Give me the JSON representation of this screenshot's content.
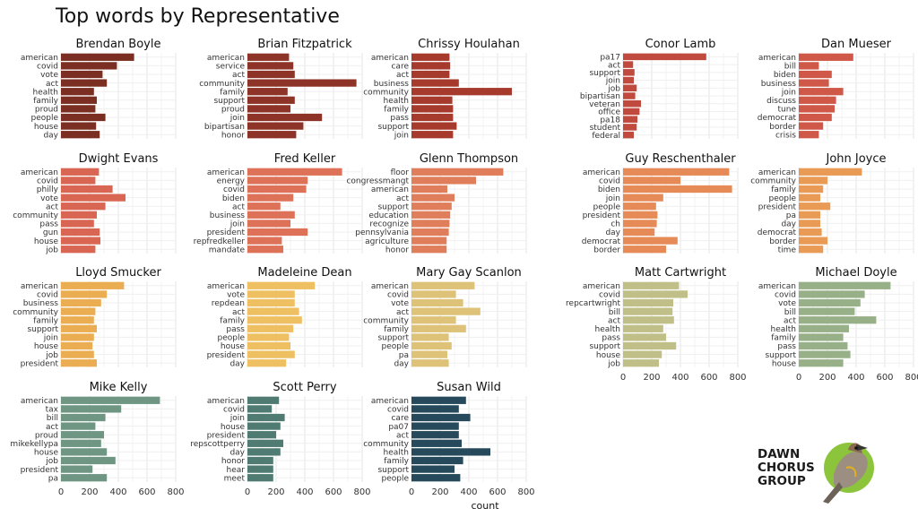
{
  "logo": {
    "lines": [
      "DAWN",
      "CHORUS",
      "GROUP"
    ]
  },
  "chart_data": {
    "type": "bar",
    "orientation": "horizontal",
    "title": "Top words by Representative",
    "xlabel": "count",
    "ylabel": "",
    "xlim": [
      0,
      800
    ],
    "xticks": [
      0,
      200,
      400,
      600,
      800
    ],
    "grid": true,
    "panels": [
      {
        "name": "Brendan Boyle",
        "color": "#7a2f22",
        "words": [
          "american",
          "covid",
          "vote",
          "act",
          "health",
          "family",
          "proud",
          "people",
          "house",
          "day"
        ],
        "values": [
          510,
          390,
          290,
          320,
          230,
          250,
          240,
          310,
          245,
          270
        ]
      },
      {
        "name": "Brian Fitzpatrick",
        "color": "#8e3327",
        "words": [
          "american",
          "service",
          "act",
          "community",
          "family",
          "support",
          "proud",
          "join",
          "bipartisan",
          "honor"
        ],
        "values": [
          290,
          320,
          330,
          760,
          280,
          330,
          300,
          520,
          390,
          340
        ]
      },
      {
        "name": "Chrissy Houlahan",
        "color": "#a53a2d",
        "words": [
          "american",
          "care",
          "act",
          "business",
          "community",
          "health",
          "family",
          "pass",
          "support",
          "join"
        ],
        "values": [
          265,
          270,
          265,
          330,
          700,
          285,
          290,
          290,
          315,
          290
        ]
      },
      {
        "name": "Conor Lamb",
        "color": "#c04a3e",
        "words": [
          "pa17",
          "act",
          "support",
          "join",
          "job",
          "bipartisan",
          "veteran",
          "office",
          "pa18",
          "student",
          "federal"
        ],
        "values": [
          580,
          70,
          80,
          75,
          95,
          85,
          125,
          115,
          100,
          95,
          75
        ]
      },
      {
        "name": "Dan Mueser",
        "color": "#cf5848",
        "words": [
          "american",
          "bill",
          "biden",
          "business",
          "join",
          "discuss",
          "tune",
          "democrat",
          "border",
          "crisis"
        ],
        "values": [
          380,
          140,
          230,
          210,
          310,
          260,
          250,
          230,
          170,
          140
        ]
      },
      {
        "name": "Dwight Evans",
        "color": "#d86652",
        "words": [
          "american",
          "covid",
          "philly",
          "vote",
          "act",
          "community",
          "pass",
          "gun",
          "house",
          "job"
        ],
        "values": [
          265,
          240,
          360,
          450,
          310,
          250,
          230,
          270,
          275,
          240
        ]
      },
      {
        "name": "Fred Keller",
        "color": "#de7259",
        "words": [
          "american",
          "energy",
          "covid",
          "biden",
          "act",
          "business",
          "join",
          "president",
          "repfredkeller",
          "mandate"
        ],
        "values": [
          660,
          420,
          410,
          320,
          230,
          330,
          300,
          420,
          240,
          250
        ]
      },
      {
        "name": "Glenn Thompson",
        "color": "#e07d5a",
        "words": [
          "floor",
          "congressmangt",
          "american",
          "act",
          "support",
          "education",
          "recognize",
          "pennsylvania",
          "agriculture",
          "honor"
        ],
        "values": [
          640,
          450,
          250,
          300,
          280,
          270,
          265,
          260,
          245,
          245
        ]
      },
      {
        "name": "Guy Reschenthaler",
        "color": "#e68a57",
        "words": [
          "american",
          "covid",
          "biden",
          "join",
          "people",
          "president",
          "ch",
          "day",
          "democrat",
          "border"
        ],
        "values": [
          740,
          400,
          760,
          280,
          230,
          240,
          235,
          220,
          380,
          300
        ]
      },
      {
        "name": "John Joyce",
        "color": "#e99a55",
        "words": [
          "american",
          "community",
          "family",
          "people",
          "president",
          "pa",
          "day",
          "democrat",
          "border",
          "time"
        ],
        "values": [
          440,
          200,
          170,
          150,
          220,
          150,
          150,
          160,
          200,
          170
        ]
      },
      {
        "name": "Lloyd Smucker",
        "color": "#ebad52",
        "words": [
          "american",
          "covid",
          "business",
          "community",
          "family",
          "support",
          "join",
          "house",
          "job",
          "president"
        ],
        "values": [
          440,
          320,
          280,
          240,
          230,
          250,
          230,
          220,
          230,
          250
        ]
      },
      {
        "name": "Madeleine Dean",
        "color": "#eec062",
        "words": [
          "american",
          "vote",
          "repdean",
          "act",
          "family",
          "pass",
          "people",
          "house",
          "president",
          "day"
        ],
        "values": [
          470,
          330,
          330,
          360,
          380,
          320,
          290,
          300,
          330,
          270
        ]
      },
      {
        "name": "Mary Gay Scanlon",
        "color": "#ddc278",
        "words": [
          "american",
          "covid",
          "vote",
          "act",
          "community",
          "family",
          "support",
          "people",
          "pa",
          "day"
        ],
        "values": [
          440,
          310,
          360,
          480,
          310,
          380,
          260,
          280,
          250,
          260
        ]
      },
      {
        "name": "Matt Cartwright",
        "color": "#c0bf88",
        "words": [
          "american",
          "covid",
          "repcartwright",
          "bill",
          "act",
          "health",
          "pass",
          "support",
          "house",
          "job"
        ],
        "values": [
          390,
          450,
          350,
          345,
          355,
          280,
          300,
          370,
          270,
          250
        ]
      },
      {
        "name": "Michael Doyle",
        "color": "#98b088",
        "words": [
          "american",
          "covid",
          "vote",
          "bill",
          "act",
          "health",
          "family",
          "pass",
          "support",
          "house"
        ],
        "values": [
          640,
          460,
          430,
          390,
          540,
          350,
          310,
          340,
          360,
          310
        ]
      },
      {
        "name": "Mike Kelly",
        "color": "#6e9682",
        "words": [
          "american",
          "tax",
          "bill",
          "act",
          "proud",
          "mikekellypa",
          "house",
          "job",
          "president",
          "pa"
        ],
        "values": [
          690,
          420,
          310,
          240,
          300,
          280,
          320,
          380,
          220,
          320
        ]
      },
      {
        "name": "Scott Perry",
        "color": "#4f7b72",
        "words": [
          "american",
          "covid",
          "join",
          "house",
          "president",
          "repscottperry",
          "day",
          "honor",
          "hear",
          "meet"
        ],
        "values": [
          220,
          170,
          260,
          230,
          200,
          250,
          230,
          180,
          180,
          180
        ]
      },
      {
        "name": "Susan Wild",
        "color": "#264a5c",
        "words": [
          "american",
          "covid",
          "care",
          "pa07",
          "act",
          "community",
          "health",
          "family",
          "support",
          "people"
        ],
        "values": [
          380,
          330,
          410,
          330,
          330,
          350,
          550,
          360,
          300,
          340
        ]
      }
    ]
  }
}
